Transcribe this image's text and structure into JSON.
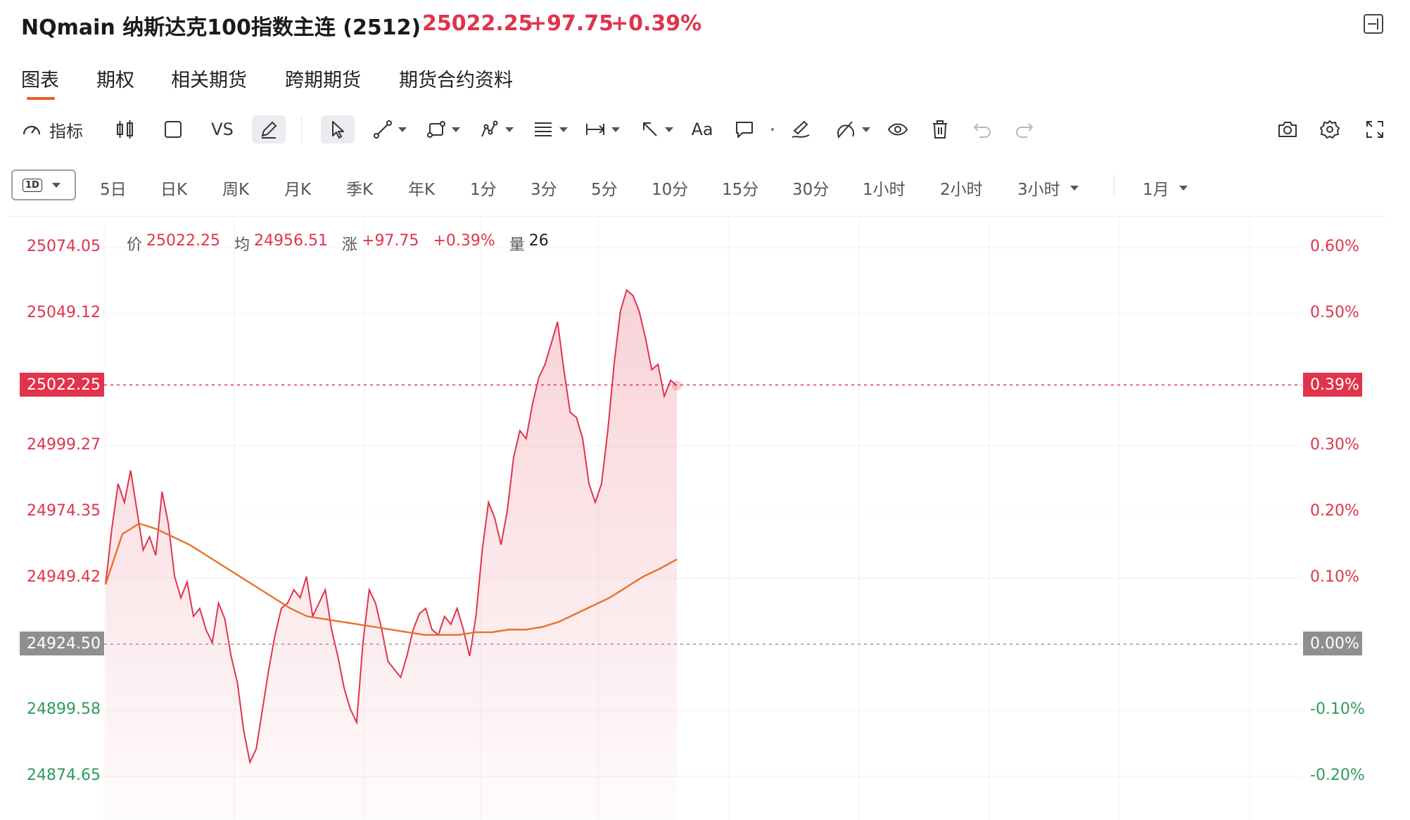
{
  "header": {
    "title": "NQmain 纳斯达克100指数主连 (2512)",
    "price": "25022.25",
    "change": "+97.75",
    "change_pct": "+0.39%",
    "up_color": "#e0344c"
  },
  "tabs": [
    {
      "label": "图表",
      "active": true
    },
    {
      "label": "期权"
    },
    {
      "label": "相关期货"
    },
    {
      "label": "跨期期货"
    },
    {
      "label": "期货合约资料"
    }
  ],
  "toolbar": {
    "indicator_label": "指标",
    "vs_label": "VS",
    "text_label": "Aa",
    "icons": [
      "gauge-icon",
      "candlestick-icon",
      "square-icon",
      "pencil-icon",
      "cursor-icon",
      "line-icon",
      "shape-icon",
      "pattern-icon",
      "fib-icon",
      "measure-icon",
      "arrow-icon",
      "comment-icon",
      "dot-icon",
      "brush-icon",
      "magnet-icon",
      "eye-icon",
      "trash-icon",
      "undo-icon",
      "redo-icon",
      "camera-icon",
      "gear-icon",
      "fullscreen-icon"
    ]
  },
  "periods": {
    "selected_badge": "1D",
    "items": [
      "5日",
      "日K",
      "周K",
      "月K",
      "季K",
      "年K",
      "1分",
      "3分",
      "5分",
      "10分",
      "15分",
      "30分",
      "1小时",
      "2小时",
      "3小时",
      "1月"
    ]
  },
  "info": {
    "price_label": "价",
    "price_value": "25022.25",
    "avg_label": "均",
    "avg_value": "24956.51",
    "chg_label": "涨",
    "chg_value": "+97.75",
    "chg_pct": "+0.39%",
    "vol_label": "量",
    "vol_value": "26"
  },
  "axis": {
    "price_ticks": [
      "25074.05",
      "25049.12",
      "24999.27",
      "24974.35",
      "24949.42",
      "24899.58",
      "24874.65"
    ],
    "pct_ticks": [
      "0.60%",
      "0.50%",
      "0.30%",
      "0.20%",
      "0.10%",
      "-0.10%",
      "-0.20%"
    ],
    "current_price_tag": "25022.25",
    "current_pct_tag": "0.39%",
    "base_price_tag": "24924.50",
    "base_pct_tag": "0.00%"
  },
  "chart_data": {
    "type": "line",
    "y_range": [
      24874.65,
      25074.05
    ],
    "prev_close": 24924.5,
    "last_price": 25022.25,
    "series": [
      {
        "name": "价",
        "color": "#e0344c",
        "values": [
          24947,
          24968,
          24985,
          24978,
          24990,
          24975,
          24960,
          24965,
          24958,
          24982,
          24970,
          24950,
          24942,
          24948,
          24935,
          24938,
          24930,
          24925,
          24940,
          24934,
          24920,
          24910,
          24892,
          24880,
          24885,
          24900,
          24915,
          24928,
          24938,
          24940,
          24945,
          24942,
          24950,
          24935,
          24940,
          24945,
          24930,
          24920,
          24908,
          24900,
          24895,
          24925,
          24945,
          24940,
          24930,
          24918,
          24915,
          24912,
          24920,
          24930,
          24936,
          24938,
          24930,
          24928,
          24935,
          24932,
          24938,
          24930,
          24920,
          24935,
          24960,
          24978,
          24972,
          24962,
          24975,
          24995,
          25005,
          25002,
          25015,
          25025,
          25030,
          25038,
          25046,
          25028,
          25012,
          25010,
          25002,
          24985,
          24978,
          24985,
          25005,
          25030,
          25050,
          25058,
          25056,
          25050,
          25040,
          25028,
          25030,
          25018,
          25024,
          25022
        ],
        "x_start": 0,
        "x_end": 1
      },
      {
        "name": "均",
        "color": "#e8722a",
        "values": [
          24947,
          24966,
          24970,
          24968,
          24965,
          24962,
          24958,
          24954,
          24950,
          24946,
          24942,
          24938,
          24935,
          24934,
          24933,
          24932,
          24931,
          24930,
          24929,
          24928,
          24928,
          24928,
          24929,
          24929,
          24930,
          24930,
          24931,
          24933,
          24936,
          24939,
          24942,
          24946,
          24950,
          24953,
          24956.51
        ],
        "x_start": 0,
        "x_end": 1
      }
    ]
  }
}
